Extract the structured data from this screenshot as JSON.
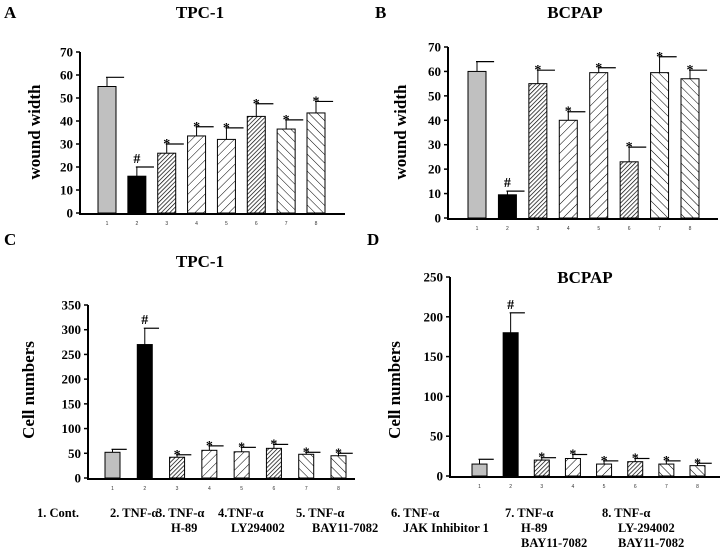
{
  "panel_labels": [
    "A",
    "B",
    "C",
    "D"
  ],
  "legend": [
    [
      "1. Cont."
    ],
    [
      "2. TNF-α"
    ],
    [
      "3. TNF-α",
      "H-89"
    ],
    [
      "4.TNF-α",
      "LY294002"
    ],
    [
      "5. TNF-α",
      "BAY11-7082"
    ],
    [
      "6. TNF-α",
      "JAK Inhibitor 1"
    ],
    [
      "7. TNF-α",
      "H-89",
      "BAY11-7082"
    ],
    [
      "8. TNF-α",
      "LY-294002",
      "BAY11-7082"
    ]
  ],
  "colors": {
    "control": "#c0c0c0",
    "tnf": "#000000",
    "hatch": "#000000",
    "background": "#ffffff"
  },
  "chart_data": [
    {
      "type": "bar",
      "title": "TPC-1",
      "ylabel": "wound  width",
      "xlabel": "",
      "categories": [
        "1",
        "2",
        "3",
        "4",
        "5",
        "6",
        "7",
        "8"
      ],
      "values": [
        55,
        16,
        26,
        33.5,
        32,
        42,
        36.5,
        43.5
      ],
      "errors": [
        4,
        4,
        4,
        4,
        5,
        5.5,
        4,
        5
      ],
      "markers": [
        "",
        "#",
        "*",
        "*",
        "*",
        "*",
        "*",
        "*"
      ],
      "ylim": [
        0,
        70
      ],
      "yticks": [
        "0",
        "10",
        "20",
        "30",
        "40",
        "50",
        "60",
        "70"
      ],
      "fills": [
        "gray",
        "black",
        "crosshatch",
        "diag-right",
        "diag-right",
        "crosshatch",
        "diag-left",
        "diag-left"
      ],
      "grid": false
    },
    {
      "type": "bar",
      "title": "BCPAP",
      "ylabel": "wound width",
      "xlabel": "",
      "categories": [
        "1",
        "2",
        "3",
        "4",
        "5",
        "6",
        "7",
        "8"
      ],
      "values": [
        60,
        9.5,
        55,
        40,
        59.5,
        23,
        59.5,
        57
      ],
      "errors": [
        4,
        1.5,
        5.5,
        3.5,
        2,
        6,
        6.5,
        3.5
      ],
      "markers": [
        "",
        "#",
        "*",
        "*",
        "*",
        "*",
        "*",
        "*"
      ],
      "ylim": [
        0,
        70
      ],
      "yticks": [
        "0",
        "10",
        "20",
        "30",
        "40",
        "50",
        "60",
        "70"
      ],
      "fills": [
        "gray",
        "black",
        "crosshatch",
        "diag-right",
        "diag-right",
        "crosshatch",
        "diag-left",
        "diag-left"
      ],
      "grid": false
    },
    {
      "type": "bar",
      "title": "TPC-1",
      "ylabel": "Cell  numbers",
      "xlabel": "",
      "categories": [
        "1",
        "2",
        "3",
        "4",
        "5",
        "6",
        "7",
        "8"
      ],
      "values": [
        52,
        270,
        42,
        56,
        53,
        60,
        48,
        45
      ],
      "errors": [
        6,
        33,
        5,
        9,
        9,
        8,
        4,
        5
      ],
      "markers": [
        "",
        "#",
        "*",
        "*",
        "*",
        "*",
        "*",
        "*"
      ],
      "ylim": [
        0,
        350
      ],
      "yticks": [
        "0",
        "50",
        "100",
        "150",
        "200",
        "250",
        "300",
        "350"
      ],
      "fills": [
        "gray",
        "black",
        "crosshatch",
        "diag-right",
        "diag-right",
        "crosshatch",
        "diag-left",
        "diag-left"
      ],
      "grid": false
    },
    {
      "type": "bar",
      "title": "BCPAP",
      "ylabel": "Cell  numbers",
      "xlabel": "",
      "categories": [
        "1",
        "2",
        "3",
        "4",
        "5",
        "6",
        "7",
        "8"
      ],
      "values": [
        15,
        180,
        20,
        22,
        15,
        18,
        15,
        13
      ],
      "errors": [
        6,
        25,
        3,
        5,
        4,
        4,
        4,
        3
      ],
      "markers": [
        "",
        "#",
        "*",
        "*",
        "*",
        "*",
        "*",
        "*"
      ],
      "ylim": [
        0,
        250
      ],
      "yticks": [
        "0",
        "50",
        "100",
        "150",
        "200",
        "250"
      ],
      "fills": [
        "gray",
        "black",
        "crosshatch",
        "diag-right",
        "diag-right",
        "crosshatch",
        "diag-left",
        "diag-left"
      ],
      "grid": false
    }
  ]
}
